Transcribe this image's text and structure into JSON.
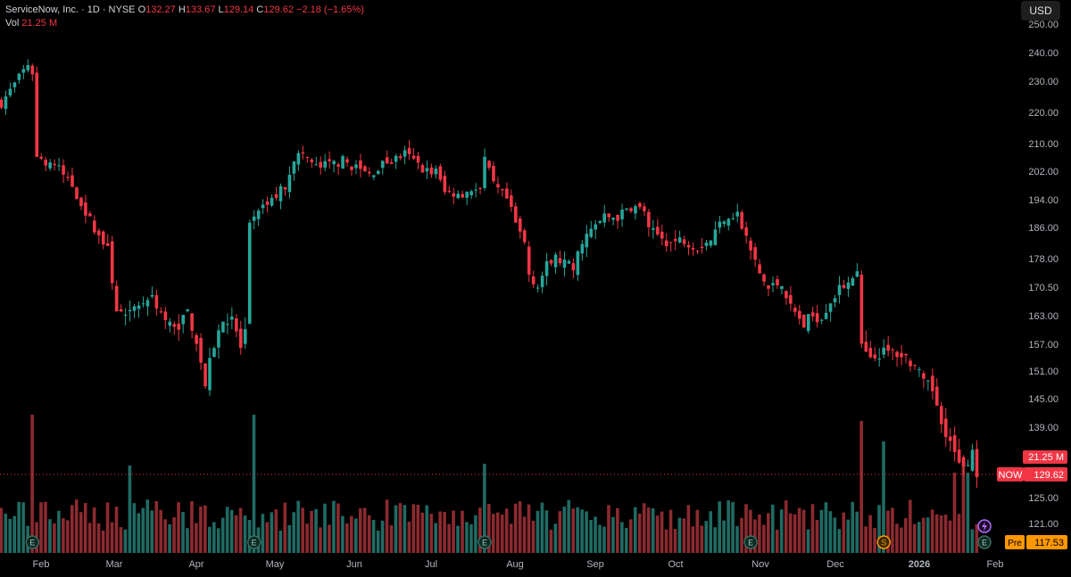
{
  "legend": {
    "symbol": "ServiceNow, Inc. · 1D · NYSE",
    "o_label": "O",
    "o_value": "132.27",
    "h_label": "H",
    "h_value": "133.67",
    "l_label": "L",
    "l_value": "129.14",
    "c_label": "C",
    "c_value": "129.62",
    "change": "−2.18 (−1.65%)",
    "vol_label": "Vol",
    "vol_value": "21.25 M"
  },
  "currency_button": "USD",
  "colors": {
    "up": "#26a69a",
    "down": "#f23645",
    "up_vol": "#1f6b63",
    "down_vol": "#8c2a30",
    "grid": "#2a2e39",
    "axis_text": "#b2b5be",
    "pre": "#ff9800"
  },
  "chart_data": {
    "type": "candlestick",
    "title": "ServiceNow, Inc. · 1D · NYSE",
    "ylim": [
      117,
      250
    ],
    "y_ticks": [
      "250.00",
      "240.00",
      "230.00",
      "220.00",
      "210.00",
      "202.00",
      "194.00",
      "186.00",
      "178.00",
      "170.50",
      "163.00",
      "157.00",
      "151.00",
      "145.00",
      "139.00",
      "125.00",
      "121.00"
    ],
    "x_ticks": [
      "Feb",
      "Mar",
      "Apr",
      "May",
      "Jun",
      "Jul",
      "Aug",
      "Sep",
      "Oct",
      "Nov",
      "Dec",
      "2026",
      "Feb"
    ],
    "x_tick_bold": [
      false,
      false,
      false,
      false,
      false,
      false,
      false,
      false,
      false,
      false,
      false,
      true,
      false
    ],
    "price_path": [
      [
        0,
        223
      ],
      [
        3,
        229
      ],
      [
        6,
        236
      ],
      [
        7,
        233
      ],
      [
        8,
        206
      ],
      [
        12,
        204
      ],
      [
        16,
        198
      ],
      [
        20,
        188
      ],
      [
        24,
        180
      ],
      [
        26,
        165
      ],
      [
        28,
        162
      ],
      [
        31,
        166
      ],
      [
        34,
        168
      ],
      [
        37,
        162
      ],
      [
        39,
        160
      ],
      [
        42,
        164
      ],
      [
        44,
        158
      ],
      [
        46,
        148
      ],
      [
        48,
        157
      ],
      [
        50,
        162
      ],
      [
        52,
        163
      ],
      [
        54,
        156
      ],
      [
        55,
        159
      ],
      [
        56,
        186
      ],
      [
        58,
        190
      ],
      [
        61,
        194
      ],
      [
        64,
        198
      ],
      [
        66,
        206
      ],
      [
        68,
        207
      ],
      [
        71,
        203
      ],
      [
        74,
        204
      ],
      [
        77,
        205
      ],
      [
        80,
        203
      ],
      [
        83,
        201
      ],
      [
        86,
        204
      ],
      [
        88,
        205
      ],
      [
        91,
        207
      ],
      [
        94,
        204
      ],
      [
        96,
        202
      ],
      [
        98,
        202
      ],
      [
        100,
        196
      ],
      [
        104,
        196
      ],
      [
        106,
        197
      ],
      [
        108,
        196
      ],
      [
        109,
        205
      ],
      [
        111,
        198
      ],
      [
        114,
        194
      ],
      [
        116,
        187
      ],
      [
        118,
        182
      ],
      [
        119,
        174
      ],
      [
        121,
        171
      ],
      [
        123,
        176
      ],
      [
        125,
        178
      ],
      [
        127,
        177
      ],
      [
        129,
        175
      ],
      [
        131,
        183
      ],
      [
        133,
        185
      ],
      [
        136,
        189
      ],
      [
        139,
        189
      ],
      [
        142,
        192
      ],
      [
        145,
        191
      ],
      [
        146,
        185
      ],
      [
        148,
        184
      ],
      [
        151,
        182
      ],
      [
        154,
        183
      ],
      [
        157,
        181
      ],
      [
        160,
        183
      ],
      [
        163,
        189
      ],
      [
        166,
        190
      ],
      [
        167,
        186
      ],
      [
        169,
        180
      ],
      [
        171,
        174
      ],
      [
        173,
        170
      ],
      [
        176,
        172
      ],
      [
        178,
        165
      ],
      [
        181,
        161
      ],
      [
        183,
        163
      ],
      [
        185,
        163
      ],
      [
        187,
        167
      ],
      [
        190,
        171
      ],
      [
        192,
        174
      ],
      [
        193,
        174
      ],
      [
        194,
        156
      ],
      [
        196,
        153
      ],
      [
        198,
        155
      ],
      [
        202,
        155
      ],
      [
        204,
        154
      ],
      [
        206,
        152
      ],
      [
        208,
        148
      ],
      [
        210,
        147
      ],
      [
        212,
        141
      ],
      [
        214,
        136
      ],
      [
        216,
        131
      ],
      [
        218,
        132
      ],
      [
        219,
        134
      ],
      [
        220,
        130
      ]
    ],
    "candles_count": 221,
    "volume_label": "Vol",
    "last_volume": "21.25 M",
    "last_close": "129.62",
    "pre_market": "117.53",
    "symbol_tag": "NOW",
    "pre_tag": "Pre",
    "events": [
      {
        "type": "E",
        "x_index": 7
      },
      {
        "type": "E",
        "x_index": 57
      },
      {
        "type": "E",
        "x_index": 109
      },
      {
        "type": "E",
        "x_index": 169
      },
      {
        "type": "S",
        "x_index": 199
      },
      {
        "type": "E",
        "x_index": 221
      }
    ]
  }
}
